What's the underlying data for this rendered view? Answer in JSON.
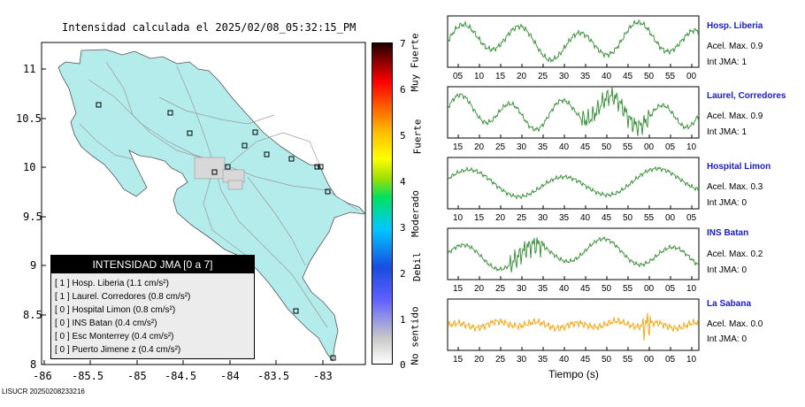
{
  "map": {
    "title": "Intensidad calculada el 2025/02/08_05:32:15_PM",
    "y_ticks": [
      "11",
      "10.5",
      "10",
      "9.5",
      "9",
      "8.5",
      "8"
    ],
    "x_ticks": [
      "-86",
      "-85.5",
      "-85",
      "-84.5",
      "-84",
      "-83.5",
      "-83"
    ],
    "land_color": "#b4ecec",
    "station_marker_count": 14
  },
  "jma_box": {
    "header": "INTENSIDAD JMA [0 a 7]",
    "rows": [
      "[ 1 ]  Hosp. Liberia (1.1 cm/s²)",
      "[ 1 ]  Laurel. Corredores (0.8 cm/s²)",
      "[ 0 ]  Hospital Limon (0.8 cm/s²)",
      "[ 0 ]  INS Batan (0.4 cm/s²)",
      "[ 0 ]  Esc Monterrey (0.4 cm/s²)",
      "[ 0 ]  Puerto Jimene z (0.4 cm/s²)"
    ]
  },
  "colorbar": {
    "ticks": [
      "7",
      "6",
      "5",
      "4",
      "3",
      "2",
      "1",
      "0"
    ],
    "labels": [
      "Muy Fuerte",
      "Fuerte",
      "Moderado",
      "Debil",
      "No sentido"
    ]
  },
  "traces": [
    {
      "name": "Hosp. Liberia",
      "accel": "Acel. Max. 0.9",
      "jma": "Int JMA: 1",
      "color": "#2e8b2e",
      "ticks": [
        "05",
        "10",
        "15",
        "20",
        "25",
        "30",
        "35",
        "40",
        "45",
        "50",
        "55",
        "00"
      ]
    },
    {
      "name": "Laurel, Corredores",
      "accel": "Acel. Max. 0.9",
      "jma": "Int JMA: 1",
      "color": "#2e8b2e",
      "ticks": [
        "15",
        "20",
        "25",
        "30",
        "35",
        "40",
        "45",
        "50",
        "55",
        "00",
        "05",
        "10"
      ]
    },
    {
      "name": "Hospital Limon",
      "accel": "Acel. Max. 0.3",
      "jma": "Int JMA: 0",
      "color": "#2e8b2e",
      "ticks": [
        "10",
        "15",
        "20",
        "25",
        "30",
        "35",
        "40",
        "45",
        "50",
        "55",
        "00",
        "05"
      ]
    },
    {
      "name": "INS Batan",
      "accel": "Acel. Max. 0.2",
      "jma": "Int JMA: 0",
      "color": "#2e8b2e",
      "ticks": [
        "15",
        "20",
        "25",
        "30",
        "35",
        "40",
        "45",
        "50",
        "55",
        "00",
        "05",
        "10"
      ]
    },
    {
      "name": "La Sabana",
      "accel": "Acel. Max. 0.0",
      "jma": "Int JMA: 0",
      "color": "#f5a000",
      "ticks": [
        "15",
        "20",
        "25",
        "30",
        "35",
        "40",
        "45",
        "50",
        "55",
        "00",
        "05",
        "10"
      ]
    }
  ],
  "xlabel": "Tiempo (s)",
  "footer": "LISUCR 20250208233216"
}
